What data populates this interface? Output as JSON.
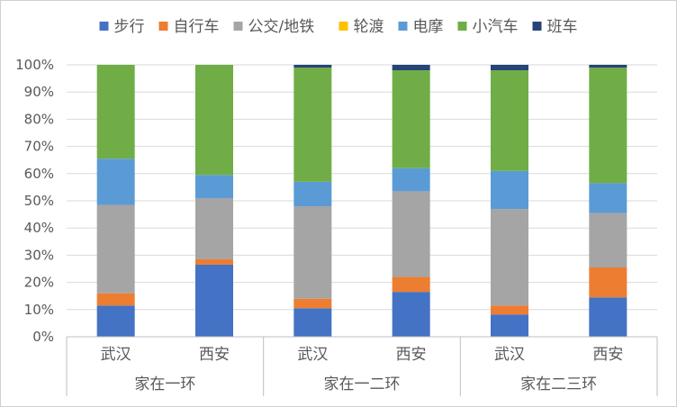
{
  "chart_data": {
    "type": "bar",
    "stacked": true,
    "stacked_100_percent": true,
    "y_tick_labels": [
      "0%",
      "10%",
      "20%",
      "30%",
      "40%",
      "50%",
      "60%",
      "70%",
      "80%",
      "90%",
      "100%"
    ],
    "ylim": [
      0,
      100
    ],
    "grid": true,
    "legend_position": "top",
    "groups": [
      {
        "label": "家在一环",
        "categories": [
          "武汉",
          "西安"
        ]
      },
      {
        "label": "家在一二环",
        "categories": [
          "武汉",
          "西安"
        ]
      },
      {
        "label": "家在二三环",
        "categories": [
          "武汉",
          "西安"
        ]
      }
    ],
    "categories": [
      "武汉",
      "西安",
      "武汉",
      "西安",
      "武汉",
      "西安"
    ],
    "series": [
      {
        "name": "步行",
        "color": "#4472C4",
        "values": [
          11.5,
          26.5,
          10.5,
          16.5,
          8.2,
          14.5
        ]
      },
      {
        "name": "自行车",
        "color": "#ED7D31",
        "values": [
          4.5,
          2.0,
          3.5,
          5.5,
          3.3,
          11.0
        ]
      },
      {
        "name": "公交/地铁",
        "color": "#A5A5A5",
        "values": [
          32.5,
          22.5,
          34.0,
          31.5,
          35.5,
          20.0
        ]
      },
      {
        "name": "轮渡",
        "color": "#FFC000",
        "values": [
          0,
          0,
          0,
          0,
          0,
          0
        ]
      },
      {
        "name": "电摩",
        "color": "#5B9BD5",
        "values": [
          17.0,
          8.5,
          9.0,
          8.5,
          14.0,
          11.0
        ]
      },
      {
        "name": "小汽车",
        "color": "#70AD47",
        "values": [
          34.5,
          40.5,
          42.0,
          36.0,
          37.0,
          42.5
        ]
      },
      {
        "name": "班车",
        "color": "#264478",
        "values": [
          0,
          0,
          1.0,
          2.0,
          2.0,
          1.0
        ]
      }
    ]
  }
}
